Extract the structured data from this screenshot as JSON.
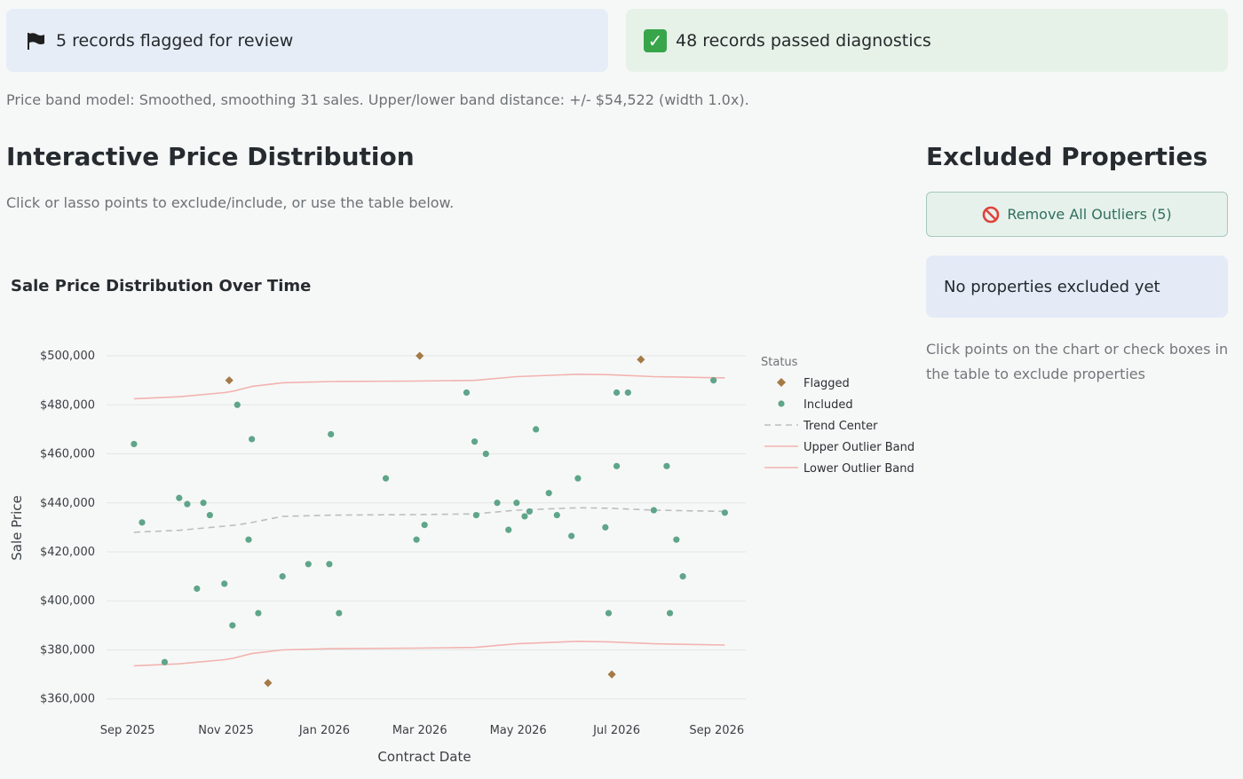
{
  "alerts": {
    "flagged_text": "5 records flagged for review",
    "passed_text": "48 records passed diagnostics"
  },
  "model_caption": "Price band model: Smoothed, smoothing 31 sales. Upper/lower band distance: +/- $54,522 (width 1.0x).",
  "left": {
    "heading": "Interactive Price Distribution",
    "subtext": "Click or lasso points to exclude/include, or use the table below."
  },
  "right": {
    "heading": "Excluded Properties",
    "remove_button": "Remove All Outliers (5)",
    "empty_message": "No properties excluded yet",
    "help_text": "Click points on the chart or check boxes in the table to exclude properties"
  },
  "colors": {
    "flagged": "#a57a46",
    "included": "#5fa58a",
    "trend": "#bdbdbd",
    "band": "#f2b3b0"
  },
  "chart_data": {
    "type": "scatter",
    "title": "Sale Price Distribution Over Time",
    "xlabel": "Contract Date",
    "ylabel": "Sale Price",
    "x_ticks": [
      "2025-09-01",
      "2025-11-01",
      "2026-01-01",
      "2026-03-01",
      "2026-05-01",
      "2026-07-01",
      "2026-09-01"
    ],
    "x_tick_labels": [
      "Sep 2025",
      "Nov 2025",
      "Jan 2026",
      "Mar 2026",
      "May 2026",
      "Jul 2026",
      "Sep 2026"
    ],
    "xlim": [
      "2025-08-19",
      "2026-09-19"
    ],
    "y_ticks": [
      360000,
      380000,
      400000,
      420000,
      440000,
      460000,
      480000,
      500000
    ],
    "y_tick_labels": [
      "$360,000",
      "$380,000",
      "$400,000",
      "$420,000",
      "$440,000",
      "$460,000",
      "$480,000",
      "$500,000"
    ],
    "ylim": [
      357000,
      504000
    ],
    "grid": true,
    "legend_title": "Status",
    "legend_position": "right",
    "legend": [
      "Flagged",
      "Included",
      "Trend Center",
      "Upper Outlier Band",
      "Lower Outlier Band"
    ],
    "series": [
      {
        "name": "Flagged",
        "points": [
          {
            "x": "2025-11-03",
            "y": 490000
          },
          {
            "x": "2025-11-27",
            "y": 366500
          },
          {
            "x": "2026-03-01",
            "y": 500000
          },
          {
            "x": "2026-06-28",
            "y": 370000
          },
          {
            "x": "2026-07-16",
            "y": 498500
          }
        ]
      },
      {
        "name": "Included",
        "points": [
          {
            "x": "2025-09-05",
            "y": 464000
          },
          {
            "x": "2025-09-10",
            "y": 432000
          },
          {
            "x": "2025-09-24",
            "y": 375000
          },
          {
            "x": "2025-10-03",
            "y": 442000
          },
          {
            "x": "2025-10-08",
            "y": 439500
          },
          {
            "x": "2025-10-14",
            "y": 405000
          },
          {
            "x": "2025-10-18",
            "y": 440000
          },
          {
            "x": "2025-10-22",
            "y": 435000
          },
          {
            "x": "2025-10-31",
            "y": 407000
          },
          {
            "x": "2025-11-05",
            "y": 390000
          },
          {
            "x": "2025-11-08",
            "y": 480000
          },
          {
            "x": "2025-11-15",
            "y": 425000
          },
          {
            "x": "2025-11-17",
            "y": 466000
          },
          {
            "x": "2025-11-21",
            "y": 395000
          },
          {
            "x": "2025-12-06",
            "y": 410000
          },
          {
            "x": "2025-12-22",
            "y": 415000
          },
          {
            "x": "2026-01-04",
            "y": 415000
          },
          {
            "x": "2026-01-05",
            "y": 468000
          },
          {
            "x": "2026-01-10",
            "y": 395000
          },
          {
            "x": "2026-02-08",
            "y": 450000
          },
          {
            "x": "2026-02-27",
            "y": 425000
          },
          {
            "x": "2026-03-04",
            "y": 431000
          },
          {
            "x": "2026-03-30",
            "y": 485000
          },
          {
            "x": "2026-04-04",
            "y": 465000
          },
          {
            "x": "2026-04-05",
            "y": 435000
          },
          {
            "x": "2026-04-11",
            "y": 460000
          },
          {
            "x": "2026-04-18",
            "y": 440000
          },
          {
            "x": "2026-04-25",
            "y": 429000
          },
          {
            "x": "2026-04-30",
            "y": 440000
          },
          {
            "x": "2026-05-05",
            "y": 434500
          },
          {
            "x": "2026-05-08",
            "y": 436500
          },
          {
            "x": "2026-05-12",
            "y": 470000
          },
          {
            "x": "2026-05-20",
            "y": 444000
          },
          {
            "x": "2026-05-25",
            "y": 435000
          },
          {
            "x": "2026-06-03",
            "y": 426500
          },
          {
            "x": "2026-06-07",
            "y": 450000
          },
          {
            "x": "2026-06-24",
            "y": 430000
          },
          {
            "x": "2026-06-26",
            "y": 395000
          },
          {
            "x": "2026-07-01",
            "y": 485000
          },
          {
            "x": "2026-07-01",
            "y": 455000
          },
          {
            "x": "2026-07-08",
            "y": 485000
          },
          {
            "x": "2026-07-24",
            "y": 437000
          },
          {
            "x": "2026-08-01",
            "y": 455000
          },
          {
            "x": "2026-08-03",
            "y": 395000
          },
          {
            "x": "2026-08-07",
            "y": 425000
          },
          {
            "x": "2026-08-11",
            "y": 410000
          },
          {
            "x": "2026-08-30",
            "y": 490000
          },
          {
            "x": "2026-09-06",
            "y": 436000
          }
        ]
      },
      {
        "name": "Trend Center",
        "points": [
          {
            "x": "2025-09-05",
            "y": 428000
          },
          {
            "x": "2025-10-03",
            "y": 428800
          },
          {
            "x": "2025-10-31",
            "y": 430500
          },
          {
            "x": "2025-11-08",
            "y": 431000
          },
          {
            "x": "2025-11-17",
            "y": 432000
          },
          {
            "x": "2025-12-06",
            "y": 434500
          },
          {
            "x": "2026-01-05",
            "y": 435000
          },
          {
            "x": "2026-02-27",
            "y": 435200
          },
          {
            "x": "2026-04-04",
            "y": 435500
          },
          {
            "x": "2026-04-30",
            "y": 437000
          },
          {
            "x": "2026-06-07",
            "y": 438000
          },
          {
            "x": "2026-06-26",
            "y": 437800
          },
          {
            "x": "2026-07-24",
            "y": 437000
          },
          {
            "x": "2026-09-06",
            "y": 436500
          }
        ]
      },
      {
        "name": "Upper Outlier Band",
        "points": [
          {
            "x": "2025-09-05",
            "y": 482500
          },
          {
            "x": "2025-10-03",
            "y": 483300
          },
          {
            "x": "2025-10-31",
            "y": 485000
          },
          {
            "x": "2025-11-05",
            "y": 485500
          },
          {
            "x": "2025-11-17",
            "y": 487500
          },
          {
            "x": "2025-12-06",
            "y": 489000
          },
          {
            "x": "2026-01-05",
            "y": 489500
          },
          {
            "x": "2026-02-27",
            "y": 489700
          },
          {
            "x": "2026-04-04",
            "y": 490000
          },
          {
            "x": "2026-04-30",
            "y": 491500
          },
          {
            "x": "2026-06-07",
            "y": 492500
          },
          {
            "x": "2026-06-26",
            "y": 492300
          },
          {
            "x": "2026-07-24",
            "y": 491500
          },
          {
            "x": "2026-09-06",
            "y": 491000
          }
        ]
      },
      {
        "name": "Lower Outlier Band",
        "points": [
          {
            "x": "2025-09-05",
            "y": 373500
          },
          {
            "x": "2025-10-03",
            "y": 374300
          },
          {
            "x": "2025-10-31",
            "y": 376000
          },
          {
            "x": "2025-11-05",
            "y": 376500
          },
          {
            "x": "2025-11-17",
            "y": 378500
          },
          {
            "x": "2025-12-06",
            "y": 380000
          },
          {
            "x": "2026-01-05",
            "y": 380500
          },
          {
            "x": "2026-02-27",
            "y": 380700
          },
          {
            "x": "2026-04-04",
            "y": 381000
          },
          {
            "x": "2026-04-30",
            "y": 382500
          },
          {
            "x": "2026-06-07",
            "y": 383500
          },
          {
            "x": "2026-06-26",
            "y": 383300
          },
          {
            "x": "2026-07-24",
            "y": 382500
          },
          {
            "x": "2026-09-06",
            "y": 382000
          }
        ]
      }
    ]
  }
}
